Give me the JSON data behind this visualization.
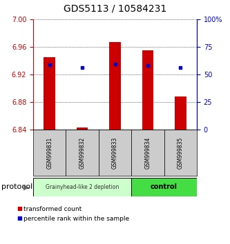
{
  "title": "GDS5113 / 10584231",
  "samples": [
    "GSM999831",
    "GSM999832",
    "GSM999833",
    "GSM999834",
    "GSM999835"
  ],
  "bar_bottoms": [
    6.84,
    6.84,
    6.84,
    6.84,
    6.84
  ],
  "bar_tops": [
    6.945,
    6.843,
    6.967,
    6.955,
    6.888
  ],
  "blue_y": [
    6.934,
    6.93,
    6.935,
    6.933,
    6.93
  ],
  "ylim": [
    6.84,
    7.0
  ],
  "yticks_left": [
    6.84,
    6.88,
    6.92,
    6.96,
    7.0
  ],
  "yticks_right": [
    0,
    25,
    50,
    75,
    100
  ],
  "yticks_right_labels": [
    "0",
    "25",
    "50",
    "75",
    "100%"
  ],
  "bar_color": "#cc0000",
  "blue_color": "#0000cc",
  "group1_label": "Grainyhead-like 2 depletion",
  "group2_label": "control",
  "group1_indices": [
    0,
    1,
    2
  ],
  "group2_indices": [
    3,
    4
  ],
  "group1_bg": "#ccffcc",
  "group2_bg": "#44dd44",
  "sample_bg": "#cccccc",
  "protocol_label": "protocol",
  "legend_red": "transformed count",
  "legend_blue": "percentile rank within the sample",
  "title_fontsize": 10,
  "tick_fontsize": 7,
  "sample_fontsize": 5.5,
  "legend_fontsize": 6.5
}
